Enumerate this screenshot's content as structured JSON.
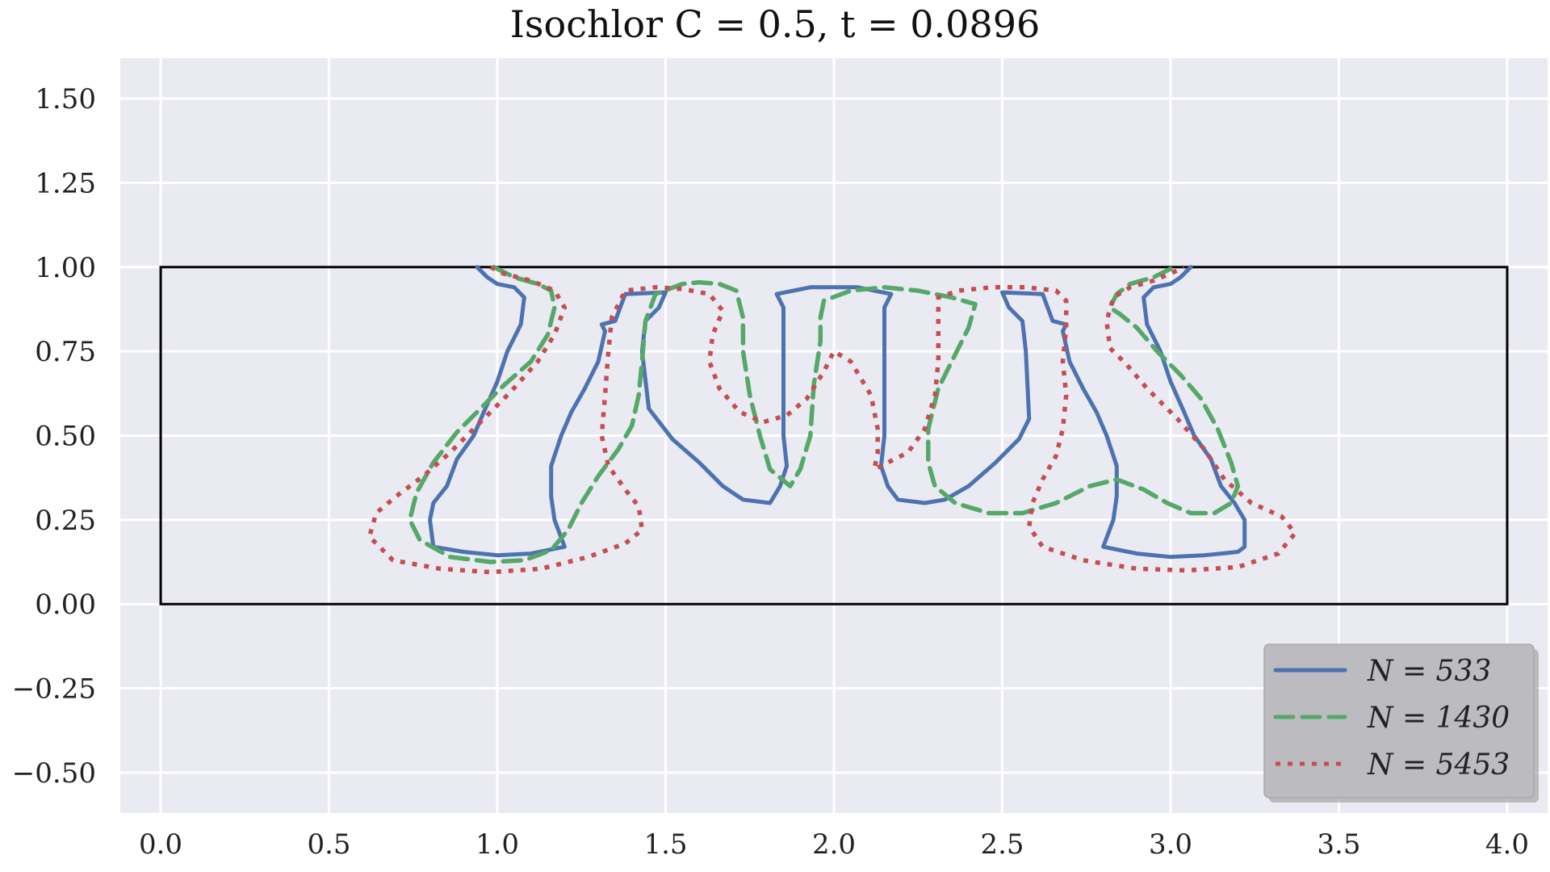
{
  "chart_data": {
    "type": "line",
    "title": "Isochlor C = 0.5, t = 0.0896",
    "xlim": [
      -0.12,
      4.12
    ],
    "ylim": [
      -0.62,
      1.62
    ],
    "xticks": [
      0.0,
      0.5,
      1.0,
      1.5,
      2.0,
      2.5,
      3.0,
      3.5,
      4.0
    ],
    "yticks": [
      -0.5,
      -0.25,
      0.0,
      0.25,
      0.5,
      0.75,
      1.0,
      1.25,
      1.5
    ],
    "xticklabels": [
      "0.0",
      "0.5",
      "1.0",
      "1.5",
      "2.0",
      "2.5",
      "3.0",
      "3.5",
      "4.0"
    ],
    "yticklabels": [
      "−0.50",
      "−0.25",
      "0.00",
      "0.25",
      "0.50",
      "0.75",
      "1.00",
      "1.25",
      "1.50"
    ],
    "grid": true,
    "legend_position": "bottom-right",
    "domain_box": {
      "x": [
        0,
        4
      ],
      "y": [
        0,
        1
      ],
      "color": "#000000"
    },
    "series": [
      {
        "name": "N = 533",
        "color": "#4C72B0",
        "style": "solid",
        "segments": [
          [
            [
              0.94,
              1.0
            ],
            [
              0.97,
              0.97
            ],
            [
              1.0,
              0.95
            ],
            [
              1.05,
              0.94
            ],
            [
              1.08,
              0.91
            ],
            [
              1.07,
              0.83
            ],
            [
              1.03,
              0.75
            ],
            [
              1.0,
              0.66
            ],
            [
              0.96,
              0.57
            ],
            [
              0.93,
              0.5
            ],
            [
              0.88,
              0.43
            ],
            [
              0.85,
              0.35
            ],
            [
              0.81,
              0.3
            ],
            [
              0.8,
              0.25
            ],
            [
              0.81,
              0.17
            ],
            [
              0.9,
              0.155
            ],
            [
              1.0,
              0.145
            ],
            [
              1.1,
              0.15
            ],
            [
              1.2,
              0.17
            ],
            [
              1.17,
              0.25
            ],
            [
              1.16,
              0.32
            ],
            [
              1.16,
              0.41
            ],
            [
              1.19,
              0.5
            ],
            [
              1.22,
              0.57
            ],
            [
              1.26,
              0.64
            ],
            [
              1.3,
              0.72
            ],
            [
              1.32,
              0.81
            ],
            [
              1.31,
              0.83
            ],
            [
              1.35,
              0.84
            ],
            [
              1.38,
              0.92
            ],
            [
              1.5,
              0.925
            ],
            [
              1.48,
              0.88
            ],
            [
              1.44,
              0.84
            ],
            [
              1.43,
              0.75
            ],
            [
              1.45,
              0.58
            ],
            [
              1.52,
              0.49
            ],
            [
              1.6,
              0.42
            ],
            [
              1.67,
              0.35
            ],
            [
              1.73,
              0.31
            ],
            [
              1.81,
              0.3
            ],
            [
              1.84,
              0.35
            ],
            [
              1.86,
              0.41
            ],
            [
              1.85,
              0.5
            ],
            [
              1.85,
              0.65
            ],
            [
              1.85,
              0.8
            ],
            [
              1.85,
              0.88
            ],
            [
              1.83,
              0.92
            ],
            [
              1.93,
              0.94
            ],
            [
              2.0,
              0.94
            ],
            [
              2.07,
              0.94
            ],
            [
              2.17,
              0.92
            ],
            [
              2.15,
              0.88
            ],
            [
              2.15,
              0.8
            ],
            [
              2.15,
              0.65
            ],
            [
              2.15,
              0.5
            ],
            [
              2.14,
              0.41
            ],
            [
              2.16,
              0.35
            ],
            [
              2.19,
              0.31
            ],
            [
              2.27,
              0.3
            ],
            [
              2.33,
              0.31
            ],
            [
              2.4,
              0.35
            ],
            [
              2.48,
              0.42
            ],
            [
              2.55,
              0.49
            ],
            [
              2.58,
              0.55
            ],
            [
              2.57,
              0.75
            ],
            [
              2.56,
              0.84
            ],
            [
              2.52,
              0.88
            ],
            [
              2.5,
              0.925
            ],
            [
              2.62,
              0.92
            ],
            [
              2.65,
              0.84
            ],
            [
              2.69,
              0.83
            ],
            [
              2.68,
              0.81
            ],
            [
              2.7,
              0.72
            ],
            [
              2.74,
              0.64
            ],
            [
              2.78,
              0.57
            ],
            [
              2.81,
              0.5
            ],
            [
              2.84,
              0.41
            ],
            [
              2.84,
              0.32
            ],
            [
              2.83,
              0.25
            ],
            [
              2.8,
              0.17
            ],
            [
              2.9,
              0.15
            ],
            [
              3.0,
              0.14
            ],
            [
              3.1,
              0.145
            ],
            [
              3.2,
              0.155
            ],
            [
              3.22,
              0.17
            ],
            [
              3.22,
              0.25
            ],
            [
              3.19,
              0.3
            ],
            [
              3.15,
              0.35
            ],
            [
              3.12,
              0.43
            ],
            [
              3.07,
              0.5
            ],
            [
              3.04,
              0.57
            ],
            [
              3.0,
              0.66
            ],
            [
              2.97,
              0.75
            ],
            [
              2.93,
              0.83
            ],
            [
              2.92,
              0.91
            ],
            [
              2.95,
              0.94
            ],
            [
              3.0,
              0.95
            ],
            [
              3.03,
              0.97
            ],
            [
              3.06,
              1.0
            ]
          ]
        ]
      },
      {
        "name": "N = 1430",
        "color": "#55A868",
        "style": "dashed",
        "segments": [
          [
            [
              0.99,
              1.0
            ],
            [
              1.05,
              0.97
            ],
            [
              1.12,
              0.95
            ],
            [
              1.16,
              0.93
            ],
            [
              1.17,
              0.88
            ],
            [
              1.15,
              0.8
            ],
            [
              1.1,
              0.72
            ],
            [
              1.02,
              0.65
            ],
            [
              0.95,
              0.58
            ],
            [
              0.88,
              0.51
            ],
            [
              0.81,
              0.42
            ],
            [
              0.76,
              0.33
            ],
            [
              0.74,
              0.25
            ],
            [
              0.77,
              0.19
            ],
            [
              0.86,
              0.14
            ],
            [
              0.98,
              0.125
            ],
            [
              1.08,
              0.13
            ],
            [
              1.16,
              0.16
            ],
            [
              1.21,
              0.22
            ],
            [
              1.25,
              0.3
            ],
            [
              1.3,
              0.38
            ],
            [
              1.36,
              0.46
            ],
            [
              1.4,
              0.53
            ],
            [
              1.42,
              0.62
            ],
            [
              1.43,
              0.72
            ],
            [
              1.44,
              0.84
            ],
            [
              1.47,
              0.92
            ],
            [
              1.55,
              0.95
            ],
            [
              1.6,
              0.955
            ],
            [
              1.66,
              0.95
            ],
            [
              1.71,
              0.93
            ],
            [
              1.73,
              0.85
            ],
            [
              1.73,
              0.75
            ],
            [
              1.75,
              0.62
            ],
            [
              1.78,
              0.5
            ],
            [
              1.81,
              0.4
            ],
            [
              1.87,
              0.35
            ],
            [
              1.9,
              0.4
            ],
            [
              1.93,
              0.5
            ],
            [
              1.94,
              0.65
            ],
            [
              1.96,
              0.78
            ],
            [
              1.96,
              0.85
            ],
            [
              1.97,
              0.9
            ],
            [
              2.05,
              0.93
            ],
            [
              2.15,
              0.94
            ],
            [
              2.25,
              0.93
            ],
            [
              2.35,
              0.91
            ],
            [
              2.42,
              0.89
            ],
            [
              2.4,
              0.82
            ],
            [
              2.36,
              0.74
            ],
            [
              2.31,
              0.64
            ],
            [
              2.28,
              0.52
            ],
            [
              2.28,
              0.42
            ],
            [
              2.3,
              0.35
            ],
            [
              2.36,
              0.3
            ],
            [
              2.46,
              0.27
            ],
            [
              2.56,
              0.27
            ],
            [
              2.66,
              0.3
            ],
            [
              2.76,
              0.35
            ],
            [
              2.84,
              0.37
            ],
            [
              2.92,
              0.34
            ],
            [
              2.99,
              0.3
            ],
            [
              3.06,
              0.27
            ],
            [
              3.13,
              0.27
            ],
            [
              3.18,
              0.3
            ],
            [
              3.2,
              0.35
            ],
            [
              3.18,
              0.42
            ],
            [
              3.14,
              0.52
            ],
            [
              3.09,
              0.61
            ],
            [
              3.03,
              0.68
            ],
            [
              2.96,
              0.75
            ],
            [
              2.9,
              0.82
            ],
            [
              2.85,
              0.86
            ],
            [
              2.82,
              0.88
            ],
            [
              2.84,
              0.92
            ],
            [
              2.88,
              0.95
            ],
            [
              2.95,
              0.97
            ],
            [
              3.01,
              1.0
            ]
          ]
        ]
      },
      {
        "name": "N = 5453",
        "color": "#C44E52",
        "style": "dotted",
        "segments": [
          [
            [
              0.98,
              1.0
            ],
            [
              1.02,
              0.98
            ],
            [
              1.1,
              0.96
            ],
            [
              1.17,
              0.93
            ],
            [
              1.2,
              0.88
            ],
            [
              1.17,
              0.8
            ],
            [
              1.12,
              0.72
            ],
            [
              1.04,
              0.63
            ],
            [
              0.95,
              0.54
            ],
            [
              0.86,
              0.45
            ],
            [
              0.78,
              0.38
            ],
            [
              0.7,
              0.32
            ],
            [
              0.64,
              0.27
            ],
            [
              0.62,
              0.2
            ],
            [
              0.69,
              0.13
            ],
            [
              0.83,
              0.105
            ],
            [
              0.98,
              0.095
            ],
            [
              1.13,
              0.105
            ],
            [
              1.27,
              0.14
            ],
            [
              1.38,
              0.18
            ],
            [
              1.43,
              0.22
            ],
            [
              1.42,
              0.29
            ],
            [
              1.38,
              0.34
            ],
            [
              1.33,
              0.41
            ],
            [
              1.31,
              0.5
            ],
            [
              1.32,
              0.62
            ],
            [
              1.33,
              0.75
            ],
            [
              1.34,
              0.85
            ],
            [
              1.38,
              0.93
            ],
            [
              1.47,
              0.94
            ],
            [
              1.55,
              0.935
            ],
            [
              1.63,
              0.92
            ],
            [
              1.67,
              0.87
            ],
            [
              1.64,
              0.8
            ],
            [
              1.63,
              0.72
            ],
            [
              1.66,
              0.64
            ],
            [
              1.72,
              0.57
            ],
            [
              1.79,
              0.54
            ],
            [
              1.86,
              0.56
            ],
            [
              1.92,
              0.61
            ],
            [
              1.97,
              0.69
            ],
            [
              2.0,
              0.75
            ],
            [
              2.05,
              0.72
            ],
            [
              2.11,
              0.62
            ],
            [
              2.13,
              0.52
            ],
            [
              2.13,
              0.45
            ],
            [
              2.12,
              0.4
            ],
            [
              2.16,
              0.42
            ],
            [
              2.22,
              0.45
            ],
            [
              2.27,
              0.52
            ],
            [
              2.3,
              0.62
            ],
            [
              2.31,
              0.72
            ],
            [
              2.31,
              0.82
            ],
            [
              2.31,
              0.91
            ],
            [
              2.37,
              0.93
            ],
            [
              2.47,
              0.94
            ],
            [
              2.57,
              0.94
            ],
            [
              2.66,
              0.93
            ],
            [
              2.69,
              0.9
            ],
            [
              2.69,
              0.82
            ],
            [
              2.68,
              0.72
            ],
            [
              2.69,
              0.62
            ],
            [
              2.68,
              0.52
            ],
            [
              2.66,
              0.44
            ],
            [
              2.62,
              0.37
            ],
            [
              2.59,
              0.3
            ],
            [
              2.58,
              0.23
            ],
            [
              2.62,
              0.17
            ],
            [
              2.74,
              0.13
            ],
            [
              2.9,
              0.105
            ],
            [
              3.05,
              0.1
            ],
            [
              3.2,
              0.11
            ],
            [
              3.32,
              0.15
            ],
            [
              3.37,
              0.21
            ],
            [
              3.33,
              0.26
            ],
            [
              3.24,
              0.3
            ],
            [
              3.16,
              0.37
            ],
            [
              3.1,
              0.46
            ],
            [
              3.02,
              0.55
            ],
            [
              2.93,
              0.64
            ],
            [
              2.87,
              0.71
            ],
            [
              2.82,
              0.76
            ],
            [
              2.81,
              0.84
            ],
            [
              2.83,
              0.91
            ],
            [
              2.88,
              0.94
            ],
            [
              2.95,
              0.96
            ],
            [
              3.02,
              0.99
            ],
            [
              3.04,
              1.0
            ]
          ]
        ]
      }
    ]
  }
}
